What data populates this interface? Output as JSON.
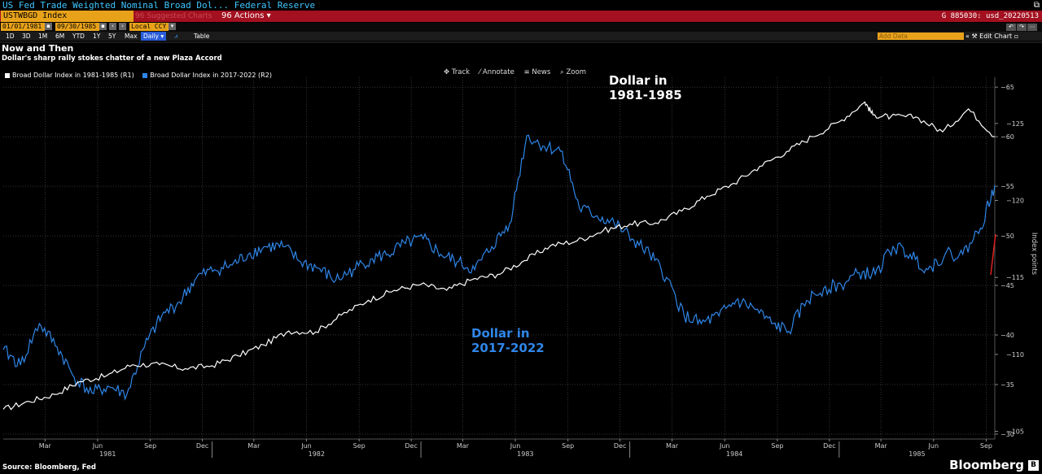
{
  "window": {
    "title": "US Fed Trade Weighted Nominal Broad Dol...   Federal Reserve"
  },
  "command_bar": {
    "ticker": "USTWBGD Index",
    "suggested": "96 Suggested Charts",
    "actions": "96 Actions ▾",
    "right_id": "G 885030: usd_20220513"
  },
  "date_row": {
    "start": "01/01/1981",
    "end": "09/30/1985",
    "currency": "Local CCY"
  },
  "range_row": {
    "ranges": [
      "1D",
      "3D",
      "1M",
      "6M",
      "YTD",
      "1Y",
      "5Y",
      "Max"
    ],
    "frequency": "Daily ▾",
    "table_label": "Table",
    "add_data_placeholder": "Add Data",
    "edit_chart": "Edit Chart"
  },
  "toolbar": {
    "track": "Track",
    "annotate": "Annotate",
    "news": "News",
    "zoom": "Zoom"
  },
  "footer": {
    "source": "Source: Bloomberg, Fed",
    "brand": "Bloomberg"
  },
  "colors": {
    "series_1981": "#ffffff",
    "series_2017": "#2f86e8",
    "command_bar": "#a3101f",
    "accent_orange": "#e8a21a",
    "red_marker": "#e02020"
  },
  "chart_data": {
    "type": "line",
    "title": "Now and Then",
    "subtitle": "Dollar's sharp rally stokes chatter of a new Plaza Accord",
    "annotations": [
      {
        "text_lines": [
          "Dollar in",
          "1981-1985"
        ],
        "series": "1981"
      },
      {
        "text_lines": [
          "Dollar in",
          "2017-2022"
        ],
        "series": "2017"
      }
    ],
    "ylabel": "Index points",
    "x_axis": {
      "range": [
        "1981-01-01",
        "1985-09-30"
      ],
      "month_ticks": [
        "Mar",
        "Jun",
        "Sep",
        "Dec",
        "Mar",
        "Jun",
        "Sep",
        "Dec",
        "Mar",
        "Jun",
        "Sep",
        "Dec",
        "Mar",
        "Jun",
        "Sep",
        "Dec",
        "Mar",
        "Jun",
        "Sep"
      ],
      "year_ticks": [
        "1981",
        "1982",
        "1983",
        "1984",
        "1985"
      ]
    },
    "y_axis_left_ticks": [
      "65",
      "60",
      "55",
      "50",
      "45",
      "40",
      "35",
      "30"
    ],
    "y_axis_right_ticks": [
      "125",
      "120",
      "115",
      "110",
      "105"
    ],
    "ylim_left": [
      29.5,
      66
    ],
    "ylim_right": [
      104.5,
      128
    ],
    "grid": true,
    "legend_position": "top-left",
    "series": [
      {
        "name": "Broad Dollar Index in 1981-1985 (R1)",
        "axis": "left",
        "points": [
          [
            "1981-01-01",
            32.5
          ],
          [
            "1981-02-15",
            33.3
          ],
          [
            "1981-04-01",
            34.0
          ],
          [
            "1981-05-15",
            35.3
          ],
          [
            "1981-07-01",
            35.9
          ],
          [
            "1981-08-15",
            37.0
          ],
          [
            "1981-10-01",
            37.0
          ],
          [
            "1981-11-15",
            36.6
          ],
          [
            "1982-01-01",
            36.9
          ],
          [
            "1982-02-15",
            37.9
          ],
          [
            "1982-04-01",
            39.0
          ],
          [
            "1982-05-15",
            40.4
          ],
          [
            "1982-07-01",
            40.3
          ],
          [
            "1982-08-15",
            42.0
          ],
          [
            "1982-10-01",
            43.5
          ],
          [
            "1982-11-15",
            44.5
          ],
          [
            "1983-01-01",
            45.1
          ],
          [
            "1983-02-15",
            44.5
          ],
          [
            "1983-04-01",
            45.6
          ],
          [
            "1983-05-15",
            46.1
          ],
          [
            "1983-07-01",
            47.5
          ],
          [
            "1983-08-15",
            49.0
          ],
          [
            "1983-10-01",
            49.5
          ],
          [
            "1983-11-15",
            50.5
          ],
          [
            "1984-01-01",
            51.2
          ],
          [
            "1984-02-15",
            51.3
          ],
          [
            "1984-04-01",
            52.5
          ],
          [
            "1984-05-15",
            54.0
          ],
          [
            "1984-07-01",
            55.3
          ],
          [
            "1984-08-15",
            57.0
          ],
          [
            "1984-10-01",
            58.5
          ],
          [
            "1984-11-15",
            60.0
          ],
          [
            "1985-01-01",
            61.5
          ],
          [
            "1985-02-15",
            63.5
          ],
          [
            "1985-03-01",
            62.2
          ],
          [
            "1985-04-01",
            62.0
          ],
          [
            "1985-05-15",
            62.0
          ],
          [
            "1985-07-01",
            60.5
          ],
          [
            "1985-08-15",
            62.8
          ],
          [
            "1985-09-30",
            60.0
          ]
        ]
      },
      {
        "name": "Broad Dollar Index in 2017-2022 (R2)",
        "axis": "right",
        "points": [
          [
            "1981-01-01",
            110.3
          ],
          [
            "1981-01-31",
            109.3
          ],
          [
            "1981-03-05",
            112.0
          ],
          [
            "1981-04-05",
            110.5
          ],
          [
            "1981-05-05",
            108.5
          ],
          [
            "1981-06-05",
            107.5
          ],
          [
            "1981-07-05",
            107.9
          ],
          [
            "1981-08-05",
            107.4
          ],
          [
            "1981-09-05",
            110.5
          ],
          [
            "1981-10-05",
            112.5
          ],
          [
            "1981-11-05",
            113.4
          ],
          [
            "1981-12-05",
            115.0
          ],
          [
            "1982-01-05",
            115.5
          ],
          [
            "1982-02-05",
            115.8
          ],
          [
            "1982-03-05",
            116.5
          ],
          [
            "1982-04-05",
            117.0
          ],
          [
            "1982-05-05",
            117.0
          ],
          [
            "1982-06-05",
            116.0
          ],
          [
            "1982-07-05",
            115.6
          ],
          [
            "1982-08-05",
            114.8
          ],
          [
            "1982-09-05",
            115.5
          ],
          [
            "1982-10-05",
            116.2
          ],
          [
            "1982-11-05",
            116.5
          ],
          [
            "1982-12-05",
            117.2
          ],
          [
            "1983-01-05",
            117.5
          ],
          [
            "1983-02-05",
            116.5
          ],
          [
            "1983-03-05",
            116.0
          ],
          [
            "1983-04-05",
            115.5
          ],
          [
            "1983-05-05",
            117.0
          ],
          [
            "1983-06-05",
            118.5
          ],
          [
            "1983-07-05",
            124.2
          ],
          [
            "1983-08-05",
            123.5
          ],
          [
            "1983-09-05",
            123.2
          ],
          [
            "1983-10-05",
            119.5
          ],
          [
            "1983-11-05",
            119.0
          ],
          [
            "1983-12-05",
            118.5
          ],
          [
            "1984-01-05",
            117.5
          ],
          [
            "1984-02-05",
            116.5
          ],
          [
            "1984-03-05",
            115.0
          ],
          [
            "1984-04-05",
            112.5
          ],
          [
            "1984-05-05",
            112.0
          ],
          [
            "1984-06-05",
            112.5
          ],
          [
            "1984-07-05",
            113.5
          ],
          [
            "1984-08-05",
            113.0
          ],
          [
            "1984-09-05",
            112.0
          ],
          [
            "1984-10-05",
            111.5
          ],
          [
            "1984-11-05",
            113.5
          ],
          [
            "1984-12-05",
            114.3
          ],
          [
            "1985-01-05",
            114.5
          ],
          [
            "1985-02-05",
            115.3
          ],
          [
            "1985-03-05",
            115.2
          ],
          [
            "1985-04-05",
            117.0
          ],
          [
            "1985-05-05",
            116.5
          ],
          [
            "1985-06-05",
            115.5
          ],
          [
            "1985-07-05",
            116.5
          ],
          [
            "1985-08-05",
            116.5
          ],
          [
            "1985-09-05",
            118.2
          ],
          [
            "1985-09-30",
            121.0
          ]
        ]
      }
    ]
  }
}
